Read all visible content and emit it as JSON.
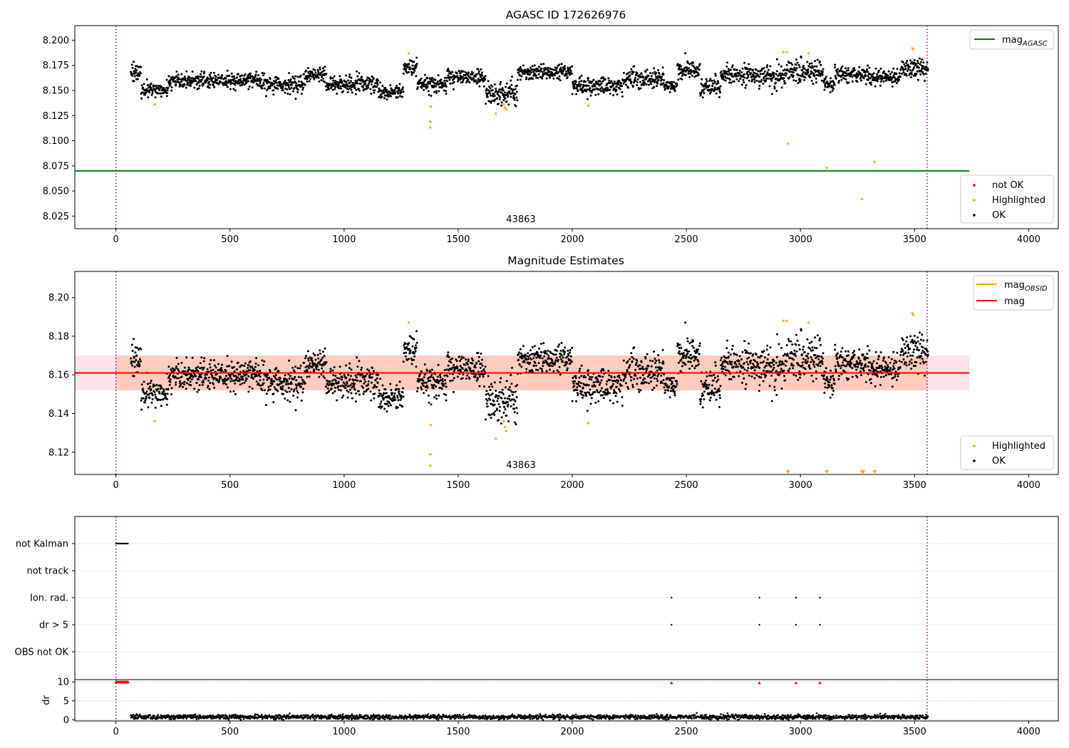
{
  "colors": {
    "ok": "#000000",
    "highlighted": "#ffa500",
    "not_ok": "#ff0000",
    "mag_agasc": "#008000",
    "mag_obsid": "#ffa500",
    "mag": "#ff0000",
    "band": "#ff0000",
    "obs_boundary": "#800080",
    "grid": "#b0b0b0"
  },
  "chart_data": [
    {
      "type": "scatter",
      "title": "AGASC ID 172626976",
      "xlim": [
        -180,
        4130
      ],
      "ylim": [
        8.0125,
        8.2145
      ],
      "x_ticks": [
        0,
        500,
        1000,
        1500,
        2000,
        2500,
        3000,
        3500,
        4000
      ],
      "y_ticks": [
        8.025,
        8.05,
        8.075,
        8.1,
        8.125,
        8.15,
        8.175,
        8.2
      ],
      "y_tick_labels": [
        "8.025",
        "8.050",
        "8.075",
        "8.100",
        "8.125",
        "8.150",
        "8.175",
        "8.200"
      ],
      "obsid_label": "43863",
      "obs_boundaries": [
        0,
        3555
      ],
      "mag_agasc": {
        "value": 8.07,
        "x_range": [
          -180,
          3740
        ]
      },
      "segments": [
        {
          "x": [
            65,
            110
          ],
          "base": 8.168,
          "amp": 0.006
        },
        {
          "x": [
            110,
            230
          ],
          "base": 8.151,
          "amp": 0.005
        },
        {
          "x": [
            230,
            640
          ],
          "base": 8.16,
          "amp": 0.005
        },
        {
          "x": [
            640,
            830
          ],
          "base": 8.156,
          "amp": 0.006
        },
        {
          "x": [
            830,
            920
          ],
          "base": 8.166,
          "amp": 0.005
        },
        {
          "x": [
            920,
            1150
          ],
          "base": 8.156,
          "amp": 0.006
        },
        {
          "x": [
            1150,
            1260
          ],
          "base": 8.148,
          "amp": 0.005
        },
        {
          "x": [
            1260,
            1320
          ],
          "base": 8.173,
          "amp": 0.006
        },
        {
          "x": [
            1320,
            1450
          ],
          "base": 8.156,
          "amp": 0.005
        },
        {
          "x": [
            1450,
            1620
          ],
          "base": 8.163,
          "amp": 0.005
        },
        {
          "x": [
            1620,
            1760
          ],
          "base": 8.147,
          "amp": 0.007
        },
        {
          "x": [
            1760,
            2000
          ],
          "base": 8.168,
          "amp": 0.005
        },
        {
          "x": [
            2000,
            2220
          ],
          "base": 8.154,
          "amp": 0.006
        },
        {
          "x": [
            2220,
            2400
          ],
          "base": 8.162,
          "amp": 0.006
        },
        {
          "x": [
            2400,
            2460
          ],
          "base": 8.155,
          "amp": 0.004
        },
        {
          "x": [
            2460,
            2560
          ],
          "base": 8.17,
          "amp": 0.007
        },
        {
          "x": [
            2560,
            2650
          ],
          "base": 8.154,
          "amp": 0.006
        },
        {
          "x": [
            2650,
            2930
          ],
          "base": 8.165,
          "amp": 0.007
        },
        {
          "x": [
            2930,
            3100
          ],
          "base": 8.169,
          "amp": 0.008
        },
        {
          "x": [
            3100,
            3150
          ],
          "base": 8.157,
          "amp": 0.004
        },
        {
          "x": [
            3150,
            3300
          ],
          "base": 8.166,
          "amp": 0.006
        },
        {
          "x": [
            3300,
            3440
          ],
          "base": 8.163,
          "amp": 0.005
        },
        {
          "x": [
            3440,
            3560
          ],
          "base": 8.172,
          "amp": 0.006
        }
      ],
      "highlighted_points": [
        [
          170,
          8.136
        ],
        [
          1283,
          8.187
        ],
        [
          1380,
          8.134
        ],
        [
          1378,
          8.119
        ],
        [
          1378,
          8.113
        ],
        [
          1665,
          8.127
        ],
        [
          1700,
          8.136
        ],
        [
          1705,
          8.133
        ],
        [
          1710,
          8.131
        ],
        [
          2070,
          8.135
        ],
        [
          2925,
          8.188
        ],
        [
          2940,
          8.188
        ],
        [
          2945,
          8.097
        ],
        [
          3035,
          8.187
        ],
        [
          3115,
          8.073
        ],
        [
          3270,
          8.042
        ],
        [
          3325,
          8.079
        ],
        [
          3490,
          8.192
        ],
        [
          3495,
          8.191
        ]
      ],
      "legends": [
        {
          "entries": [
            "mag_AGASC"
          ],
          "position": "upper-right"
        },
        {
          "entries": [
            "not OK",
            "Highlighted",
            "OK"
          ],
          "position": "lower-right"
        }
      ],
      "legend_labels": {
        "mag_agasc_base": "mag",
        "mag_agasc_sub": "AGASC",
        "not_ok": "not OK",
        "highlighted": "Highlighted",
        "ok": "OK"
      }
    },
    {
      "type": "scatter",
      "title": "Magnitude Estimates",
      "xlim": [
        -180,
        4130
      ],
      "ylim": [
        8.1085,
        8.2135
      ],
      "x_ticks": [
        0,
        500,
        1000,
        1500,
        2000,
        2500,
        3000,
        3500,
        4000
      ],
      "y_ticks": [
        8.12,
        8.14,
        8.16,
        8.18,
        8.2
      ],
      "y_tick_labels": [
        "8.12",
        "8.14",
        "8.16",
        "8.18",
        "8.20"
      ],
      "obsid_label": "43863",
      "obs_boundaries": [
        0,
        3555
      ],
      "mag": {
        "value": 8.161,
        "x_range": [
          -180,
          3740
        ],
        "band": [
          8.152,
          8.17
        ]
      },
      "mag_obsid": {
        "value": 8.161,
        "x_range": [
          0,
          3555
        ],
        "band": [
          8.152,
          8.17
        ]
      },
      "clipped_points_x": [
        2945,
        3115,
        3270,
        3275,
        3325
      ],
      "legends": [
        {
          "entries": [
            "mag_OBSID",
            "mag"
          ],
          "position": "upper-right"
        },
        {
          "entries": [
            "Highlighted",
            "OK"
          ],
          "position": "lower-right"
        }
      ],
      "legend_labels": {
        "mag_obsid_base": "mag",
        "mag_obsid_sub": "OBSID",
        "mag": "mag",
        "highlighted": "Highlighted",
        "ok": "OK"
      }
    },
    {
      "type": "scatter",
      "xlim": [
        -180,
        4130
      ],
      "category_ticks": [
        "not Kalman",
        "not track",
        "Ion. rad.",
        "dr > 5",
        "OBS not OK"
      ],
      "flags": {
        "not_kalman_x_range": [
          0,
          55
        ],
        "ion_rad_x": [
          2435,
          2820,
          2980,
          3085
        ],
        "dr_gt5_x": [
          2435,
          2820,
          2980,
          3085
        ]
      },
      "x_ticks": [
        0,
        500,
        1000,
        1500,
        2000,
        2500,
        3000,
        3500,
        4000
      ],
      "obs_boundaries": [
        0,
        3555
      ]
    },
    {
      "type": "scatter",
      "xlim": [
        -180,
        4130
      ],
      "ylim": [
        -0.3,
        10.6
      ],
      "y_ticks": [
        0,
        5,
        10
      ],
      "y_tick_labels": [
        "0",
        "5",
        "10"
      ],
      "ylabel": "dr",
      "x_ticks": [
        0,
        500,
        1000,
        1500,
        2000,
        2500,
        3000,
        3500,
        4000
      ],
      "obs_boundaries": [
        0,
        3555
      ],
      "not_ok_points_x": [
        2435,
        2820,
        2980,
        3085
      ],
      "not_ok_early_x_range": [
        0,
        55
      ]
    }
  ]
}
